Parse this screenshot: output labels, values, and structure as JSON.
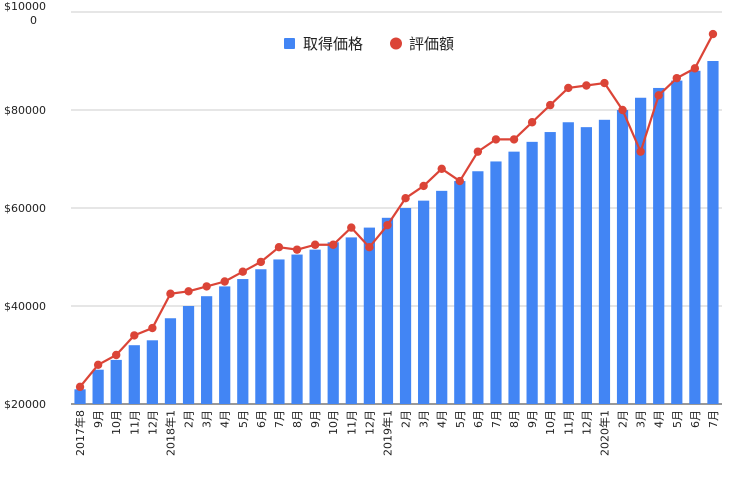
{
  "chart_data": {
    "type": "bar",
    "categories": [
      "2017年8",
      "9月",
      "10月",
      "11月",
      "12月",
      "2018年1",
      "2月",
      "3月",
      "4月",
      "5月",
      "6月",
      "7月",
      "8月",
      "9月",
      "10月",
      "11月",
      "12月",
      "2019年1",
      "2月",
      "3月",
      "4月",
      "5月",
      "6月",
      "7月",
      "8月",
      "9月",
      "10月",
      "11月",
      "12月",
      "2020年1",
      "2月",
      "3月",
      "4月",
      "5月",
      "6月",
      "7月"
    ],
    "series": [
      {
        "name": "取得価格",
        "kind": "bar",
        "color": "#4285f4",
        "values": [
          23000,
          27000,
          29000,
          32000,
          33000,
          37500,
          40000,
          42000,
          44000,
          45500,
          47500,
          49500,
          50500,
          51500,
          53000,
          54000,
          56000,
          58000,
          60000,
          61500,
          63500,
          65500,
          67500,
          69500,
          71500,
          73500,
          75500,
          77500,
          76500,
          78000,
          80000,
          82500,
          84500,
          86000,
          88000,
          90000
        ]
      },
      {
        "name": "評価額",
        "kind": "line",
        "color": "#db4437",
        "values": [
          23500,
          28000,
          30000,
          34000,
          35500,
          42500,
          43000,
          44000,
          45000,
          47000,
          49000,
          52000,
          51500,
          52500,
          52500,
          56000,
          52000,
          56500,
          62000,
          64500,
          68000,
          65500,
          71500,
          74000,
          74000,
          77500,
          81000,
          84500,
          85000,
          85500,
          80000,
          71500,
          83000,
          86500,
          88500,
          95500
        ]
      }
    ],
    "y_ticks": [
      "$20000",
      "$40000",
      "$60000",
      "$80000",
      "$10000\n0"
    ],
    "ylim": [
      20000,
      100000
    ],
    "grid": true,
    "legend_position": "top-center"
  }
}
